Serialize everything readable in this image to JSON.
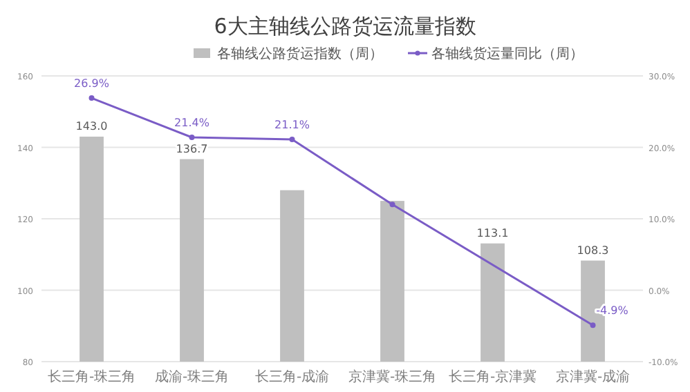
{
  "chart_data": {
    "type": "bar",
    "title": "6大主轴线公路货运流量指数",
    "categories": [
      "长三角-珠三角",
      "成渝-珠三角",
      "长三角-成渝",
      "京津冀-珠三角",
      "长三角-京津冀",
      "京津冀-成渝"
    ],
    "series": [
      {
        "name": "各轴线公路货运指数（周）",
        "color": "#bfbfbf",
        "values": [
          143.0,
          136.7,
          128,
          125,
          113.1,
          108.3
        ],
        "value_labels": [
          "143.0",
          "136.7",
          null,
          null,
          "113.1",
          "108.3"
        ]
      },
      {
        "name": "各轴线货运量同比（周）",
        "type": "line",
        "axis": "y2",
        "color": "#7a5cc6",
        "marker": "circle",
        "values": [
          26.9,
          21.4,
          21.1,
          12,
          null,
          -4.9
        ],
        "value_labels": [
          "26.9%",
          "21.4%",
          "21.1%",
          null,
          null,
          "-4.9%"
        ]
      }
    ],
    "ylim": [
      80,
      160
    ],
    "yticks": [
      80,
      100,
      120,
      140,
      160
    ],
    "y2lim": [
      -10,
      30
    ],
    "y2ticks": [
      {
        "value": -10,
        "label": "-10.0%"
      },
      {
        "value": 0,
        "label": "0.0%"
      },
      {
        "value": 10,
        "label": "10.0%"
      },
      {
        "value": 20,
        "label": "20.0%"
      },
      {
        "value": 30,
        "label": "30.0%"
      }
    ],
    "grid": "y",
    "legend": "top"
  }
}
